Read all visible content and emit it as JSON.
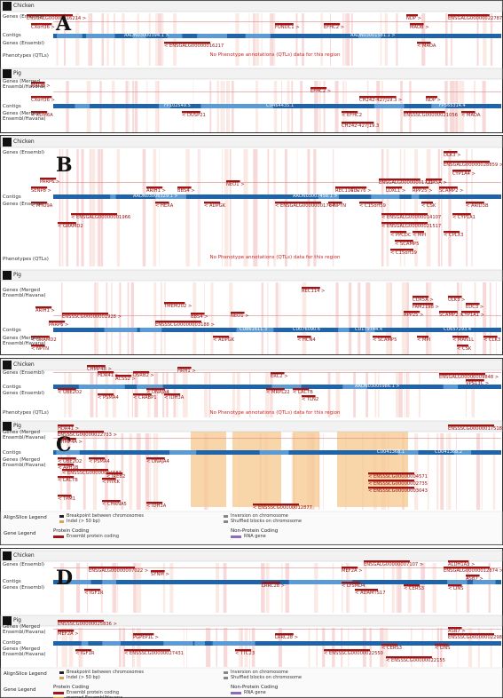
{
  "panels": [
    {
      "letter": "A",
      "sections": [
        {
          "species": "Chicken",
          "tracks": [
            "Genes (Ensembl)",
            "Contigs",
            "Genes (Ensembl)",
            "Phenotypes (QTLs)"
          ],
          "genes": [
            "ENSGALG00000016214 >",
            "CXorf36 >",
            "FUNDC1 >",
            "EFHC2 >",
            "NDP >",
            "ENSGALG00000022787",
            "MAOB >",
            "< ENSGALG00000016217",
            "< MAOA"
          ],
          "contigs": [
            "AADN03000394.1 >",
            "AADN03001581.1 >"
          ],
          "note": "No Phenotype annotations (QTLs) data for this region"
        },
        {
          "species": "Pig",
          "tracks": [
            "Genes (Merged Ensembl/Havana)",
            "Contigs",
            "Genes (Merged Ensembl/Havana)"
          ],
          "genes": [
            "MAOB >",
            "CXorf36 >",
            "EFHC2 >",
            "CH242-427J19.3 >",
            "NDP >",
            "< KDM6A",
            "< DUSP21",
            "< EFHC2",
            "ENSSSCG00000021056",
            "< MAOA",
            "CH242-427J19.3"
          ],
          "contigs": [
            "FP102549.5",
            "CU464435.1",
            "FP565314.4"
          ]
        }
      ]
    },
    {
      "letter": "B",
      "sections": [
        {
          "species": "Chicken",
          "tracks": [
            "Genes (Ensembl)",
            "Contigs",
            "Genes (Ensembl)",
            "Phenotypes (QTLs)"
          ],
          "genes": [
            "DLK3 >",
            "ENSGALG00000028859 >",
            "CYP1A4 >",
            "PARP6 >",
            "SENP8 >",
            "ARIH1 >",
            "BBS4 >",
            "NEO1 >",
            "REC114 >",
            "ENSGALG00000001721",
            "COX5A >",
            "CD276 >",
            "LOXL1 >",
            "RPP25 >",
            "SCAMP2 >",
            "< MYO9A",
            "< HEXA",
            "< ADPGK",
            "< ENSGALG00000001764",
            "< NPTN",
            "< C15orf59",
            "< CSK",
            "< ARID3B",
            "< ENSGALG00000001966",
            "< GRAMD2",
            "< ENSGALG00000014107",
            "< ENSGALG00000021517",
            "< CYP1A1",
            "< PPCDC",
            "< MPI",
            "< CPLX3",
            "< SCAMP5",
            "< C15orf39"
          ],
          "contigs": [
            "AADN03006329.1 >",
            "AADN03007458.1 >"
          ],
          "note": "No Phenotype annotations (QTLs) data for this region"
        },
        {
          "species": "Pig",
          "tracks": [
            "Genes (Merged Ensembl/Havana)",
            "Contigs",
            "Genes (Merged Ensembl/Havana)"
          ],
          "genes": [
            "REC114 >",
            "TMEM202 >",
            "ARIH1 >",
            "ENSSSCG00000001928 >",
            "PARP6 >",
            "BBS4 >",
            "NEO1 >",
            "ENSSSCG00000003188 >",
            "COX5A >",
            "ULK3 >",
            "FAM219B >",
            "EDC3 >",
            "RPP25 >",
            "SCAMP2 >",
            "CYP1A1 >",
            "< GRAMD2",
            "< ADPGK",
            "< HCN4",
            "< SCAMP5",
            "< MPI",
            "< MAN1L",
            "< CLK3",
            "< NPTN",
            "< CSK"
          ],
          "contigs": [
            "CU861611.3",
            "CU076090.6",
            "CU179744.4",
            "CU657293.4"
          ]
        }
      ]
    },
    {
      "letter": "C",
      "sections": [
        {
          "species": "Chicken",
          "tracks": [
            "Genes (Ensembl)",
            "Contigs",
            "Genes (Ensembl)",
            "Phenotypes (QTLs)"
          ],
          "genes": [
            "CHMP4B >",
            "HDR41 >",
            "ACSS2 >",
            "DSRB2 >",
            "HRH1 >",
            "ERC2 >",
            "ENSGALG00000009848 >",
            "VPS13C >",
            "< UBE2O2",
            "< PSMA4",
            "< CRABP1",
            "< DNAJA4",
            "< IDH3A",
            "< MRPL22",
            "< LACTB",
            "< TLN2"
          ],
          "contigs": [
            "AADN03005986.1 >"
          ],
          "note": "No Phenotype annotations (QTLs) data for this region"
        },
        {
          "species": "Pig",
          "tracks": [
            "Genes (Merged Ensembl/Havana)",
            "Contigs",
            "Genes (Merged Ensembl/Havana)"
          ],
          "genes": [
            "HDR41 >",
            "ENSSSCG00000022733 >",
            "CHMP4A >",
            "ENSSSCG00000017518 >",
            "< UBE2O2",
            "< PSMA4",
            "< DNAJA4",
            "< APH1B",
            "< ENSSSCG00000004583",
            "< LACTB",
            "< IREB2",
            "< HYKK",
            "< TPM1",
            "< CHRNA5",
            "< IDH3A",
            "< ENSSSCG00000004571",
            "< ENSSSCG00000002735",
            "< ENSSSCG00000003043",
            "< ENSSSCG00000012877"
          ],
          "contigs": [
            "CU041368.1",
            "CU041368.2"
          ]
        }
      ],
      "legend": {
        "align_title": "AlignSlice Legend",
        "align_items": [
          "Breakpoint between chromosomes",
          "Indel (> 50 bp)",
          "Inversion on chromosome",
          "Shuffled blocks on chromosome"
        ],
        "gene_title": "Gene Legend",
        "protein_heading": "Protein Coding",
        "protein_items": [
          "Ensembl protein coding"
        ],
        "non_protein_heading": "Non-Protein Coding",
        "non_protein_items": [
          "RNA gene"
        ]
      }
    },
    {
      "letter": "D",
      "sections": [
        {
          "species": "Chicken",
          "tracks": [
            "Genes (Ensembl)",
            "Contigs",
            "Genes (Ensembl)"
          ],
          "genes": [
            "ENSGALG00000007022 >",
            "SYNM >",
            "ENSGALG00000007107 >",
            "MEF2A >",
            "ALDH1A3 >",
            "ENSGALG00000012874 >",
            "< IGF1R",
            "LRRC28 >",
            "< LYSMD4",
            "< ADAMTS17",
            "< CERS3",
            "< LINS",
            "ASB7 >"
          ]
        },
        {
          "species": "Pig",
          "tracks": [
            "Genes (Merged Ensembl/Havana)",
            "Contigs",
            "Genes (Merged Ensembl/Havana)"
          ],
          "genes": [
            "ENSSSCG00000025836 >",
            "MEF2A >",
            "PGPEP1L >",
            "LRRC28 >",
            "ASB7 >",
            "ENSSSCG00000002298 >",
            "< IGF1R",
            "< ENSSSCG00000027431",
            "< TTC23",
            "< CERS3",
            "< LINS",
            "< ENSSSCG00000022550",
            "< ENSSSCG00000022155"
          ]
        }
      ],
      "legend": {
        "align_title": "AlignSlice Legend",
        "align_items": [
          "Breakpoint between chromosomes",
          "Indel (> 50 bp)",
          "Inversion on chromosome",
          "Shuffled blocks on chromosome"
        ],
        "gene_title": "Gene Legend",
        "protein_heading": "Protein Coding",
        "protein_items": [
          "Ensembl protein coding",
          "merged Ensembl/Havana"
        ],
        "non_protein_heading": "Non-Protein Coding",
        "non_protein_items": [
          "RNA gene"
        ]
      }
    }
  ]
}
